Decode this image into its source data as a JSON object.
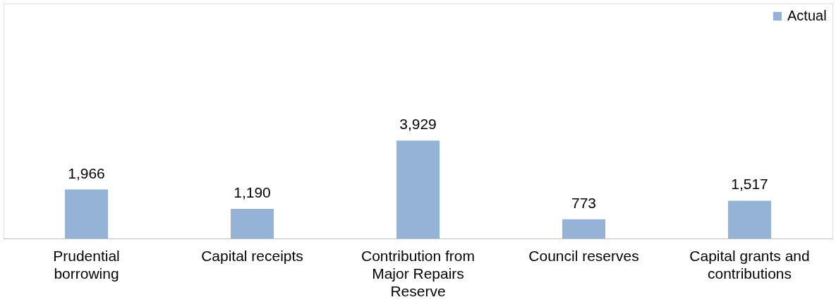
{
  "chart_data": {
    "type": "bar",
    "categories": [
      "Prudential borrowing",
      "Capital receipts",
      "Contribution from Major Repairs Reserve",
      "Council reserves",
      "Capital grants and contributions"
    ],
    "series": [
      {
        "name": "Actual",
        "color": "#95b3d7",
        "values": [
          1966,
          1190,
          3929,
          773,
          1517
        ],
        "value_labels": [
          "1,966",
          "1,190",
          "3,929",
          "773",
          "1,517"
        ]
      }
    ],
    "legend": "top right",
    "grid": false
  }
}
